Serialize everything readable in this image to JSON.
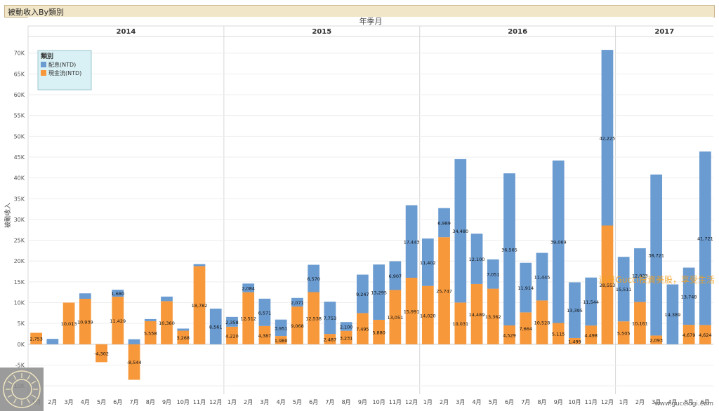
{
  "title": "被動收入By類別",
  "watermark": "追日Gucci投資美股，享受生活",
  "site": "www.gucciogi.com",
  "chart_data": {
    "type": "bar",
    "stacked": true,
    "title": "被動收入By類別",
    "column_header": "年季月",
    "ylabel": "被動收入",
    "xlabel": "",
    "ylim": [
      -12000,
      74000
    ],
    "yticks": [
      -10000,
      -5000,
      0,
      5000,
      10000,
      15000,
      20000,
      25000,
      30000,
      35000,
      40000,
      45000,
      50000,
      55000,
      60000,
      65000,
      70000
    ],
    "ytick_labels": [
      "-10K",
      "-5K",
      "0K",
      "5K",
      "10K",
      "15K",
      "20K",
      "25K",
      "30K",
      "35K",
      "40K",
      "45K",
      "50K",
      "55K",
      "60K",
      "65K",
      "70K"
    ],
    "grid": true,
    "legend": {
      "title": "類別",
      "position": "top-left"
    },
    "years": [
      {
        "label": "2014",
        "start": 0,
        "count": 12
      },
      {
        "label": "2015",
        "start": 12,
        "count": 12
      },
      {
        "label": "2016",
        "start": 24,
        "count": 12
      },
      {
        "label": "2017",
        "start": 36,
        "count": 6
      }
    ],
    "categories": [
      "1月",
      "2月",
      "3月",
      "4月",
      "5月",
      "6月",
      "7月",
      "8月",
      "9月",
      "10月",
      "11月",
      "12月",
      "1月",
      "2月",
      "3月",
      "4月",
      "5月",
      "6月",
      "7月",
      "8月",
      "9月",
      "10月",
      "11月",
      "12月",
      "1月",
      "2月",
      "3月",
      "4月",
      "5月",
      "6月",
      "7月",
      "8月",
      "9月",
      "10月",
      "11月",
      "12月",
      "1月",
      "2月",
      "3月",
      "4月",
      "5月",
      "6月"
    ],
    "series": [
      {
        "name": "現金流(NTD)",
        "color": "#f7983a",
        "values": [
          2753,
          0,
          10013,
          10939,
          -4302,
          11429,
          -8544,
          5558,
          10360,
          3268,
          18782,
          0,
          4220,
          12512,
          4387,
          1980,
          9068,
          12538,
          2487,
          3231,
          7495,
          5880,
          13051,
          15991,
          14020,
          25747,
          10031,
          14489,
          13362,
          4529,
          7664,
          10528,
          5115,
          1499,
          4498,
          28553,
          5505,
          10161,
          2093,
          0,
          4679,
          4624
        ],
        "labels": [
          "2,753",
          "",
          "10,013",
          "10,939",
          "-4,302",
          "11,429",
          "-8,544",
          "5,558",
          "10,360",
          "3,268",
          "18,782",
          "",
          "4,220",
          "12,512",
          "4,387",
          "1,980",
          "9,068",
          "12,538",
          "2,487",
          "3,231",
          "7,495",
          "5,880",
          "13,051",
          "15,991",
          "14,020",
          "25,747",
          "10,031",
          "14,489",
          "13,362",
          "4,529",
          "7,664",
          "10,528",
          "5,115",
          "1,499",
          "4,498",
          "28,553",
          "5,505",
          "10,161",
          "2,093",
          "",
          "4,679",
          "4,624"
        ]
      },
      {
        "name": "配息(NTD)",
        "color": "#6a9bd1",
        "values": [
          0,
          1300,
          0,
          1300,
          0,
          1680,
          1200,
          500,
          1100,
          500,
          500,
          8561,
          2358,
          2084,
          6571,
          3951,
          2071,
          6570,
          7753,
          2100,
          9247,
          13295,
          6907,
          17443,
          11402,
          6989,
          34480,
          12100,
          7051,
          36565,
          11914,
          11445,
          39069,
          13395,
          11544,
          42225,
          15511,
          12923,
          38721,
          14389,
          13748,
          41721
        ],
        "labels": [
          "",
          "",
          "",
          "",
          "",
          "1,680",
          "",
          "",
          "",
          "",
          "",
          "8,561",
          "2,358",
          "2,084",
          "6,571",
          "3,951",
          "2,071",
          "6,570",
          "7,753",
          "2,100",
          "9,247",
          "13,295",
          "6,907",
          "17,443",
          "11,402",
          "6,989",
          "34,480",
          "12,100",
          "7,051",
          "36,565",
          "11,914",
          "11,445",
          "39,069",
          "13,395",
          "11,544",
          "42,225",
          "15,511",
          "12,923",
          "38,721",
          "14,389",
          "13,748",
          "41,721"
        ]
      }
    ]
  }
}
